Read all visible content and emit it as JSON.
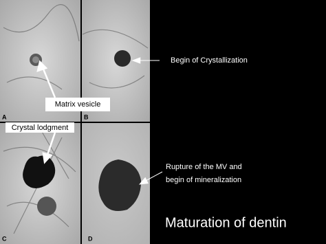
{
  "slide": {
    "title": "Maturation of dentin",
    "panels": [
      "A",
      "B",
      "C",
      "D"
    ],
    "annotations": {
      "matrix_vesicle": "Matrix vesicle",
      "crystallization": "Begin of Crystallization",
      "crystal_lodgment": "Crystal lodgment",
      "rupture": [
        "Rupture of the MV and",
        "begin of mineralization"
      ]
    }
  }
}
